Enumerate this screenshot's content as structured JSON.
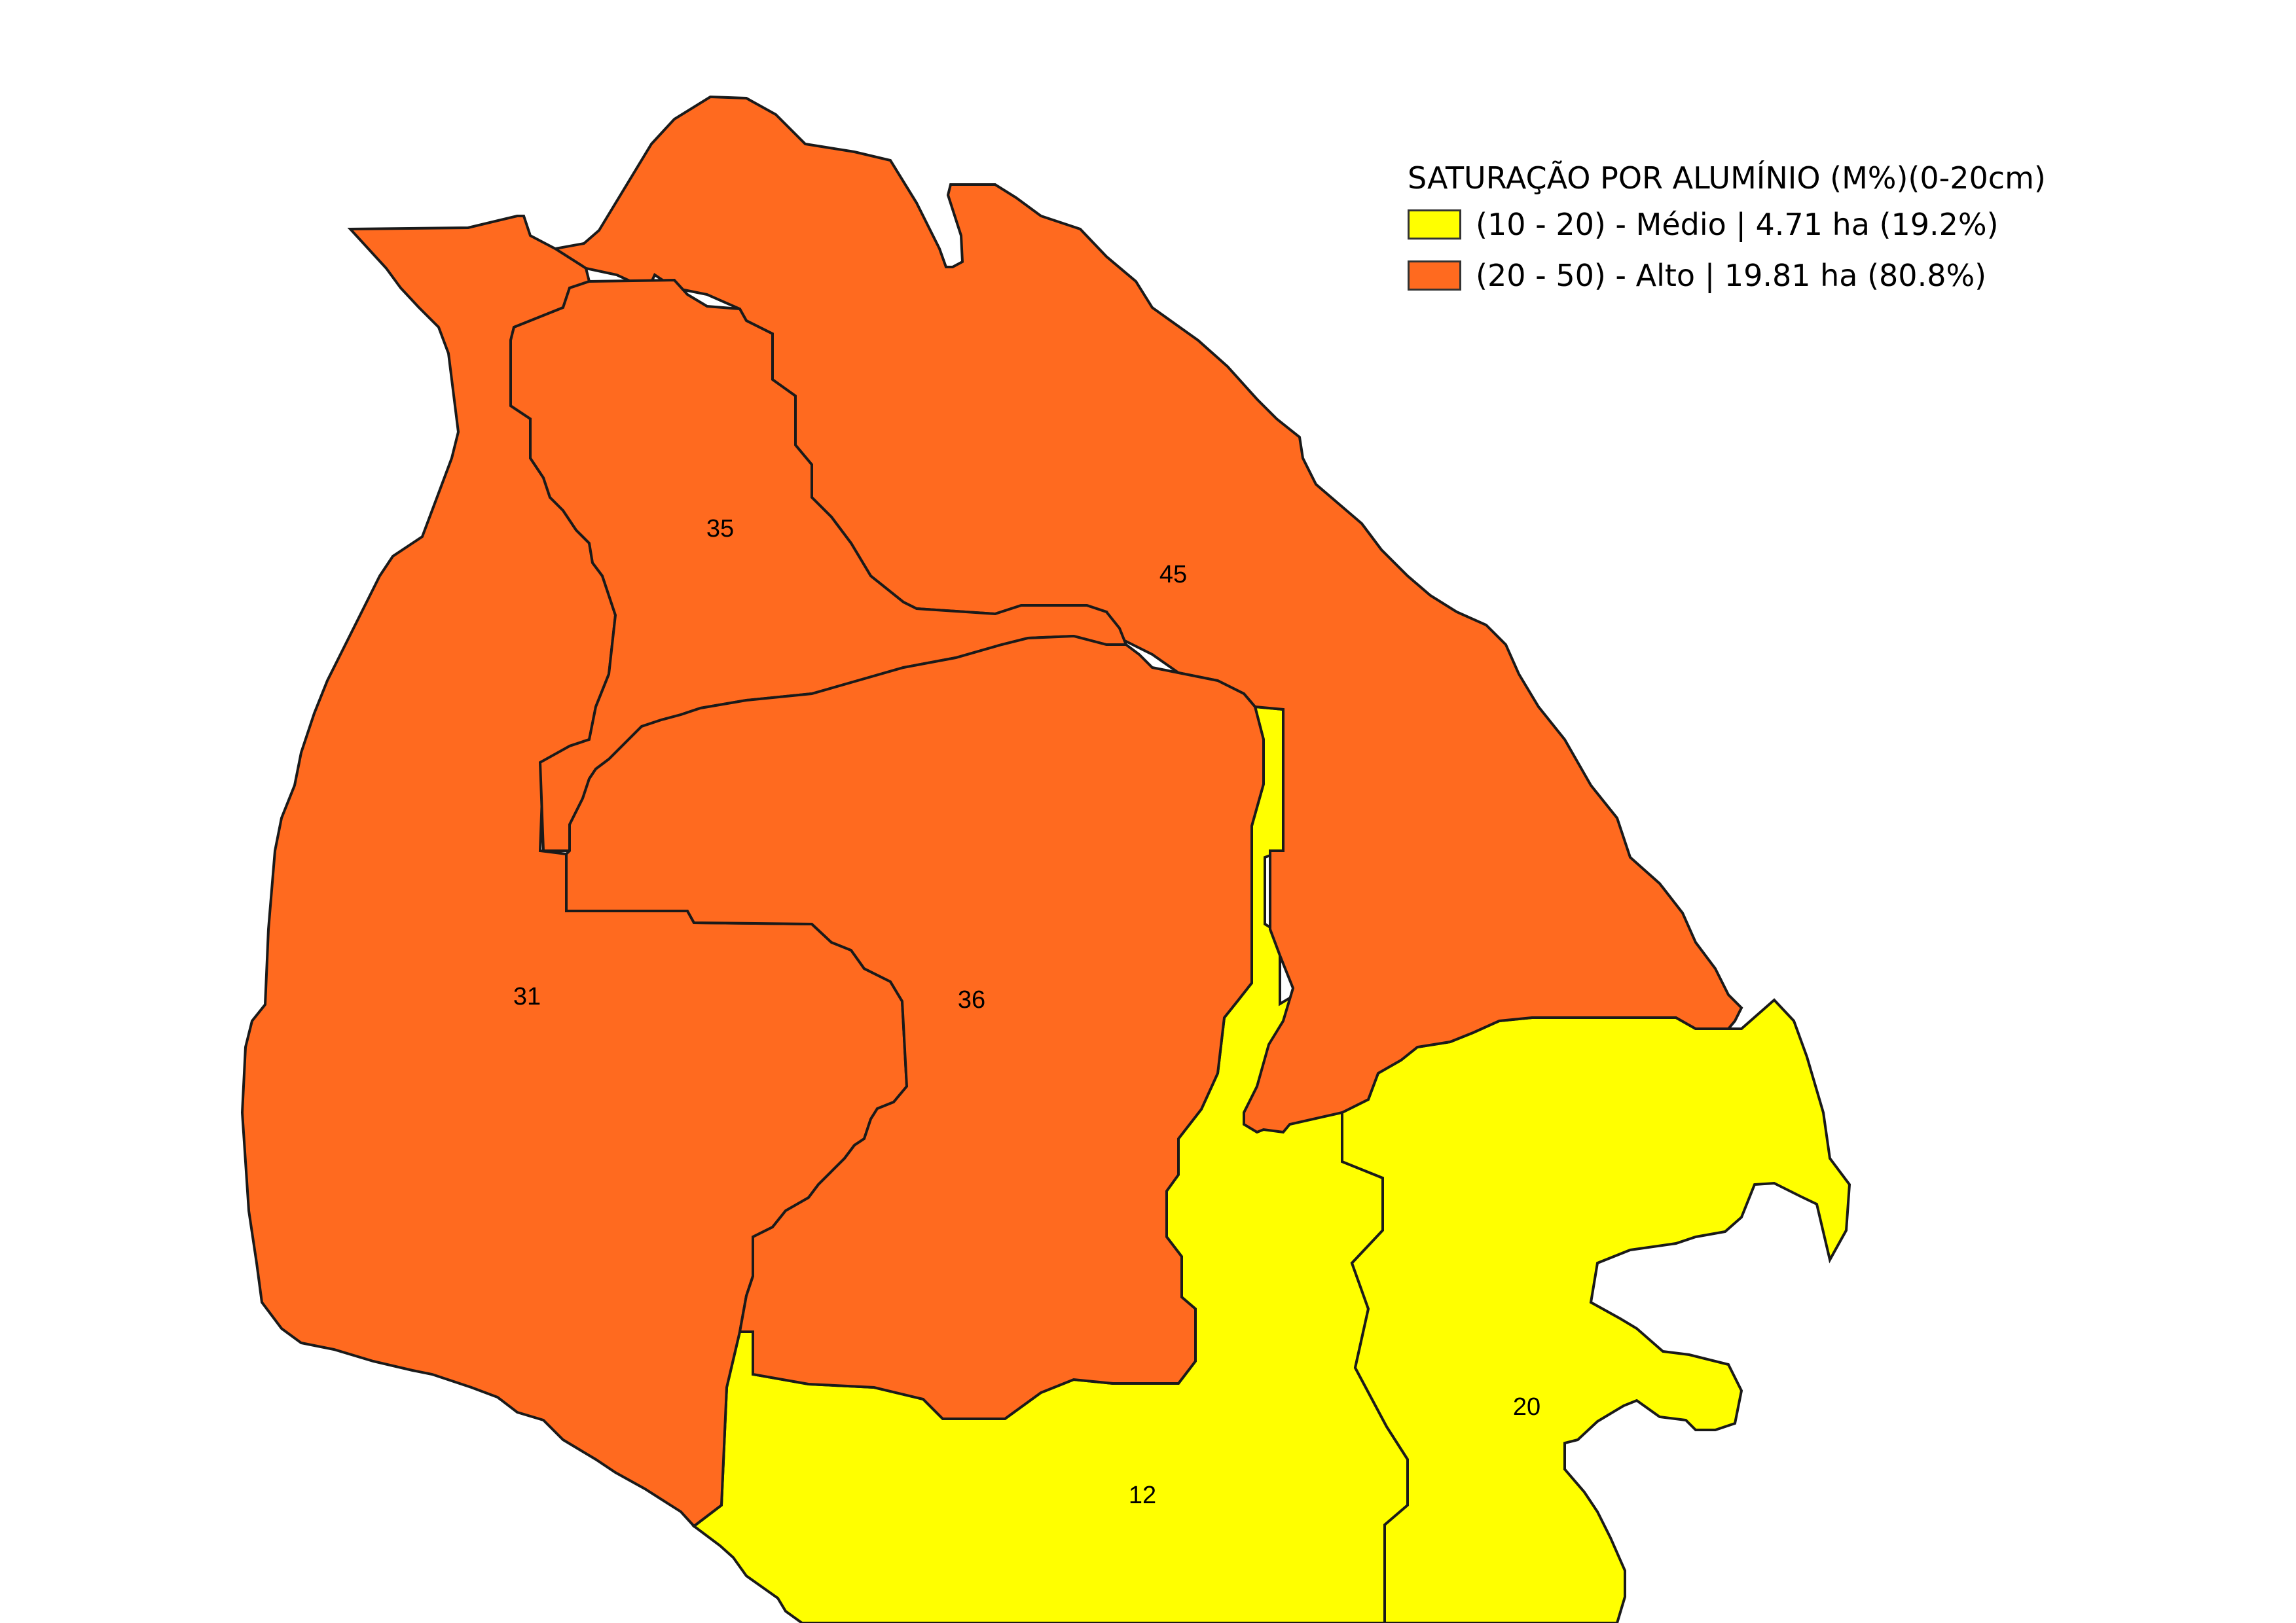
{
  "legend": {
    "title": "SATURAÇÃO POR ALUMÍNIO (M%)(0-20cm)",
    "items": [
      {
        "label": "(10 - 20) - Médio | 4.71 ha (19.2%)",
        "color": "#ffff00"
      },
      {
        "label": "(20 - 50) - Alto | 19.81 ha (80.8%)",
        "color": "#ff6a1f"
      }
    ]
  },
  "zones": [
    {
      "id": "45",
      "class": "Alto",
      "color": "#ff6a1f"
    },
    {
      "id": "35",
      "class": "Alto",
      "color": "#ff6a1f"
    },
    {
      "id": "31",
      "class": "Alto",
      "color": "#ff6a1f"
    },
    {
      "id": "36",
      "class": "Alto",
      "color": "#ff6a1f"
    },
    {
      "id": "12",
      "class": "Médio",
      "color": "#ffff00"
    },
    {
      "id": "20",
      "class": "Médio",
      "color": "#ffff00"
    }
  ]
}
